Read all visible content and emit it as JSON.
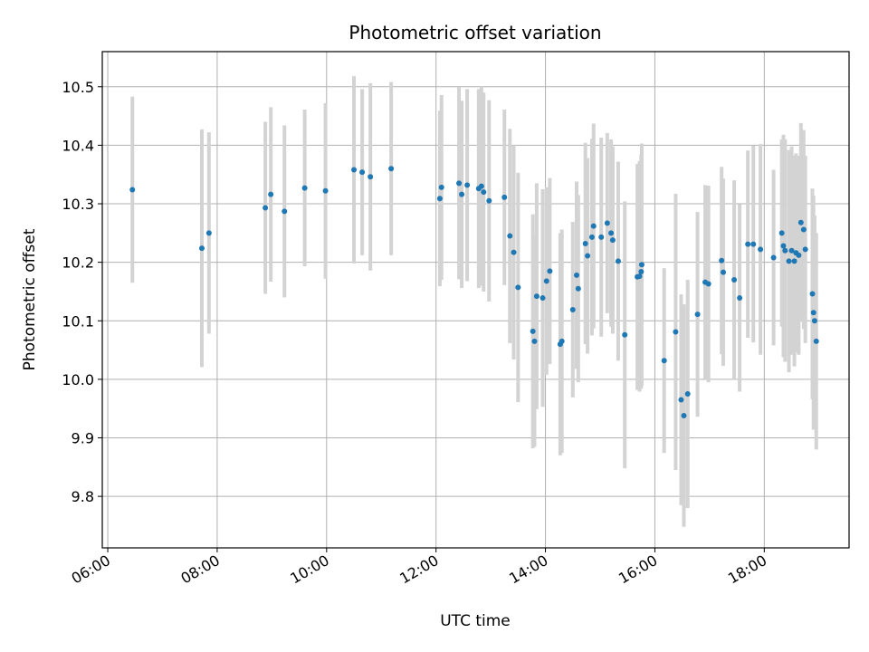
{
  "chart_data": {
    "type": "scatter",
    "title": "Photometric offset variation",
    "xlabel": "UTC time",
    "ylabel": "Photometric offset",
    "grid": true,
    "legend": "none",
    "x_unit": "UTC hours",
    "xlim": [
      5.9,
      19.55
    ],
    "ylim": [
      9.712,
      10.56
    ],
    "x_ticks": [
      6,
      8,
      10,
      12,
      14,
      16,
      18
    ],
    "x_tick_labels": [
      "06:00",
      "08:00",
      "10:00",
      "12:00",
      "14:00",
      "16:00",
      "18:00"
    ],
    "y_ticks": [
      9.8,
      9.9,
      10.0,
      10.1,
      10.2,
      10.3,
      10.4,
      10.5
    ],
    "y_tick_labels": [
      "9.8",
      "9.9",
      "10.0",
      "10.1",
      "10.2",
      "10.3",
      "10.4",
      "10.5"
    ],
    "colors": {
      "point": "#1f77b4",
      "errorbar": "#d3d3d3",
      "grid": "#b0b0b0"
    },
    "points": [
      [
        6.45,
        10.324,
        0.159
      ],
      [
        7.72,
        10.224,
        0.203
      ],
      [
        7.85,
        10.25,
        0.172
      ],
      [
        8.88,
        10.293,
        0.147
      ],
      [
        8.98,
        10.316,
        0.149
      ],
      [
        9.23,
        10.287,
        0.147
      ],
      [
        9.6,
        10.327,
        0.134
      ],
      [
        9.98,
        10.322,
        0.15
      ],
      [
        10.5,
        10.358,
        0.16
      ],
      [
        10.65,
        10.354,
        0.142
      ],
      [
        10.8,
        10.346,
        0.16
      ],
      [
        11.18,
        10.36,
        0.148
      ],
      [
        12.07,
        10.309,
        0.15
      ],
      [
        12.1,
        10.328,
        0.158
      ],
      [
        12.42,
        10.335,
        0.164
      ],
      [
        12.47,
        10.316,
        0.16
      ],
      [
        12.57,
        10.332,
        0.164
      ],
      [
        12.78,
        10.326,
        0.17
      ],
      [
        12.83,
        10.33,
        0.17
      ],
      [
        12.87,
        10.32,
        0.17
      ],
      [
        12.97,
        10.305,
        0.172
      ],
      [
        13.25,
        10.311,
        0.15
      ],
      [
        13.35,
        10.245,
        0.183
      ],
      [
        13.42,
        10.217,
        0.183
      ],
      [
        13.5,
        10.157,
        0.196
      ],
      [
        13.77,
        10.082,
        0.2
      ],
      [
        13.8,
        10.065,
        0.18
      ],
      [
        13.84,
        10.142,
        0.193
      ],
      [
        13.95,
        10.139,
        0.186
      ],
      [
        14.02,
        10.168,
        0.16
      ],
      [
        14.08,
        10.185,
        0.159
      ],
      [
        14.27,
        10.06,
        0.19
      ],
      [
        14.3,
        10.065,
        0.191
      ],
      [
        14.5,
        10.119,
        0.15
      ],
      [
        14.57,
        10.178,
        0.16
      ],
      [
        14.6,
        10.155,
        0.16
      ],
      [
        14.73,
        10.232,
        0.172
      ],
      [
        14.77,
        10.211,
        0.167
      ],
      [
        14.85,
        10.243,
        0.168
      ],
      [
        14.88,
        10.262,
        0.175
      ],
      [
        15.02,
        10.243,
        0.17
      ],
      [
        15.13,
        10.267,
        0.154
      ],
      [
        15.2,
        10.25,
        0.16
      ],
      [
        15.23,
        10.238,
        0.16
      ],
      [
        15.33,
        10.202,
        0.17
      ],
      [
        15.45,
        10.076,
        0.228
      ],
      [
        15.68,
        10.175,
        0.193
      ],
      [
        15.72,
        10.176,
        0.197
      ],
      [
        15.75,
        10.184,
        0.2
      ],
      [
        15.76,
        10.196,
        0.207
      ],
      [
        16.17,
        10.032,
        0.158
      ],
      [
        16.38,
        10.081,
        0.236
      ],
      [
        16.48,
        9.965,
        0.18
      ],
      [
        16.53,
        9.938,
        0.19
      ],
      [
        16.6,
        9.975,
        0.195
      ],
      [
        16.78,
        10.111,
        0.175
      ],
      [
        16.92,
        10.166,
        0.166
      ],
      [
        16.98,
        10.163,
        0.168
      ],
      [
        17.22,
        10.203,
        0.16
      ],
      [
        17.25,
        10.183,
        0.16
      ],
      [
        17.45,
        10.17,
        0.17
      ],
      [
        17.55,
        10.139,
        0.16
      ],
      [
        17.7,
        10.231,
        0.16
      ],
      [
        17.8,
        10.231,
        0.168
      ],
      [
        17.93,
        10.222,
        0.18
      ],
      [
        18.17,
        10.208,
        0.15
      ],
      [
        18.32,
        10.25,
        0.16
      ],
      [
        18.35,
        10.228,
        0.19
      ],
      [
        18.38,
        10.22,
        0.19
      ],
      [
        18.45,
        10.202,
        0.19
      ],
      [
        18.5,
        10.22,
        0.178
      ],
      [
        18.55,
        10.202,
        0.18
      ],
      [
        18.58,
        10.216,
        0.17
      ],
      [
        18.63,
        10.212,
        0.17
      ],
      [
        18.67,
        10.268,
        0.17
      ],
      [
        18.72,
        10.256,
        0.17
      ],
      [
        18.75,
        10.222,
        0.16
      ],
      [
        18.88,
        10.146,
        0.18
      ],
      [
        18.9,
        10.114,
        0.2
      ],
      [
        18.92,
        10.1,
        0.18
      ],
      [
        18.95,
        10.065,
        0.185
      ]
    ]
  }
}
